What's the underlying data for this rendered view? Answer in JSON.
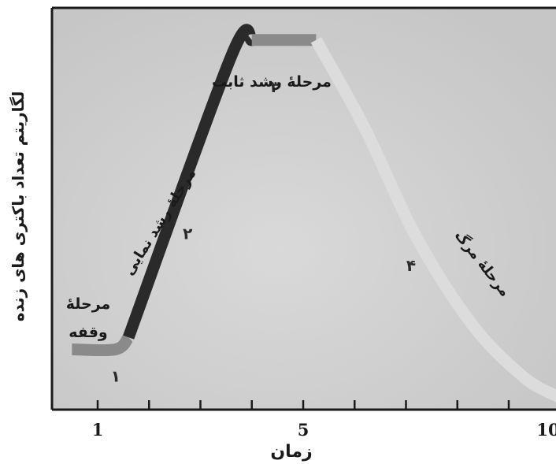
{
  "chart_data": {
    "type": "line",
    "title": "",
    "xlabel": "زمان",
    "ylabel": "لگاریتم تعداد باکتری های زنده",
    "xlim": [
      0,
      10
    ],
    "ylim": [
      0,
      10
    ],
    "x_ticks": [
      {
        "value": 1,
        "label": "1"
      },
      {
        "value": 2,
        "label": ""
      },
      {
        "value": 3,
        "label": ""
      },
      {
        "value": 4,
        "label": ""
      },
      {
        "value": 5,
        "label": "5"
      },
      {
        "value": 6,
        "label": ""
      },
      {
        "value": 7,
        "label": ""
      },
      {
        "value": 8,
        "label": ""
      },
      {
        "value": 9,
        "label": ""
      },
      {
        "value": 10,
        "label": "10"
      }
    ],
    "grid": false,
    "legend": "none",
    "phases": [
      {
        "number": "۱",
        "name_lines": [
          "مرحلهٔ",
          "وقفه"
        ],
        "color": "#8a8a8a",
        "points": [
          [
            0.5,
            1.5
          ],
          [
            1.35,
            1.5
          ],
          [
            1.6,
            1.8
          ]
        ]
      },
      {
        "number": "۲",
        "name_lines": [
          "مرحلهٔ رشد نمایی"
        ],
        "color": "#2a2a2a",
        "points": [
          [
            1.6,
            1.8
          ],
          [
            3.6,
            8.8
          ],
          [
            4.0,
            9.2
          ]
        ]
      },
      {
        "number": "۳",
        "name_lines": [
          "مرحلهٔ رشد ثابت"
        ],
        "color": "#8a8a8a",
        "points": [
          [
            4.0,
            9.2
          ],
          [
            5.25,
            9.2
          ]
        ]
      },
      {
        "number": "۴",
        "name_lines": [
          "مرحلهٔ مرگ"
        ],
        "color": "#dcdcdc",
        "points": [
          [
            5.25,
            9.2
          ],
          [
            6.2,
            7.0
          ],
          [
            7.2,
            4.3
          ],
          [
            8.3,
            2.1
          ],
          [
            9.3,
            0.8
          ],
          [
            10.0,
            0.3
          ]
        ]
      }
    ]
  }
}
